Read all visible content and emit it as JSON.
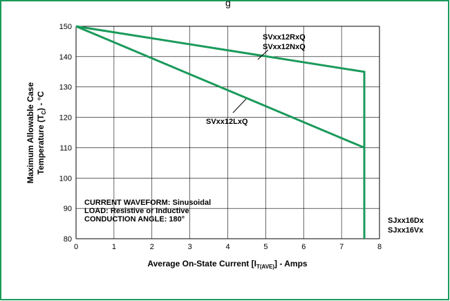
{
  "chart_data": {
    "type": "line",
    "title": "",
    "xlabel": "Average On-State Current [I",
    "xlabel_sub": "T(AVE)",
    "xlabel_suffix": "] - Amps",
    "ylabel_line1": "Maximum Allowable Case",
    "ylabel_line2a": "Temperature (T",
    "ylabel_line2_sub": "C",
    "ylabel_line2b": ") - °C",
    "xlim": [
      0,
      8
    ],
    "ylim": [
      80,
      150
    ],
    "xticks": [
      0,
      1,
      2,
      3,
      4,
      5,
      6,
      7,
      8
    ],
    "yticks": [
      80,
      90,
      100,
      110,
      120,
      130,
      140,
      150
    ],
    "grid": true,
    "series": [
      {
        "name": "SVxx12RxQ / SVxx12NxQ",
        "x": [
          0,
          7.6,
          7.6
        ],
        "y": [
          150,
          135,
          80
        ]
      },
      {
        "name": "SVxx12LxQ",
        "x": [
          0,
          7.6,
          7.6
        ],
        "y": [
          150,
          110,
          80
        ]
      }
    ],
    "line_color": "#1a9a5a",
    "labels": {
      "upper_1": "SVxx12RxQ",
      "upper_2": "SVxx12NxQ",
      "lower": "SVxx12LxQ",
      "right_1": "SJxx16Dx",
      "right_2": "SJxx16Vx"
    },
    "conditions": [
      "CURRENT WAVEFORM: Sinusoidal",
      "LOAD: Resistive or Inductive",
      "CONDUCTION ANGLE: 180°"
    ],
    "frame_color": "#1a9a5a",
    "top_fragment": "g"
  }
}
